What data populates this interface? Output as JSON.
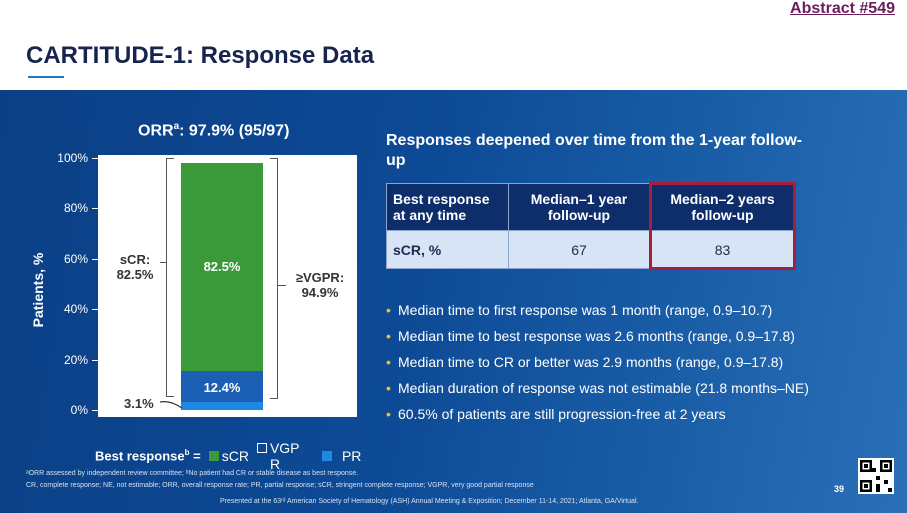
{
  "header": {
    "abstract_link": "Abstract #549",
    "title": "CARTITUDE-1: Response Data"
  },
  "chart_data": {
    "type": "bar",
    "title_prefix": "ORR",
    "title_sup": "a",
    "title_rest": ": 97.9% (95/97)",
    "ylabel": "Patients, %",
    "yticks": [
      "0%",
      "20%",
      "40%",
      "60%",
      "80%",
      "100%"
    ],
    "ylim": [
      0,
      100
    ],
    "stacked": true,
    "series": [
      {
        "name": "PR",
        "value": 3.1,
        "color": "#1e88e5"
      },
      {
        "name": "VGPR",
        "value": 12.4,
        "color": "#1a5fb4"
      },
      {
        "name": "sCR",
        "value": 82.5,
        "color": "#3a9a3a"
      }
    ],
    "labels": {
      "scr_inside": "82.5%",
      "vgpr_inside": "12.4%",
      "pr_outside": "3.1%",
      "scr_brace_line1": "sCR:",
      "scr_brace_line2": "82.5%",
      "vgpr_brace_line1": "≥VGPR:",
      "vgpr_brace_line2": "94.9%"
    },
    "legend": {
      "title": "Best response",
      "title_sup": "b",
      "eq": " =",
      "items": [
        {
          "label": "sCR",
          "color": "#3a9a3a"
        },
        {
          "label": "VGPR",
          "color": "#ffffff"
        },
        {
          "label": "PR",
          "color": "#1e88e5"
        }
      ]
    }
  },
  "responses": {
    "heading": "Responses deepened over time from the 1-year follow-up",
    "table": {
      "headers": [
        "Best response at any time",
        "Median–1 year follow-up",
        "Median–2 years follow-up"
      ],
      "rows": [
        [
          "sCR, %",
          "67",
          "83"
        ]
      ]
    }
  },
  "bullets": [
    "Median time to first response was 1 month (range, 0.9–10.7)",
    "Median time to best response was 2.6 months (range, 0.9–17.8)",
    "Median time to CR or better was 2.9 months (range, 0.9–17.8)",
    "Median duration of response was not estimable (21.8 months–NE)",
    "60.5% of patients are still progression-free at 2 years"
  ],
  "footer": {
    "footnote1": "ᵃORR assessed by independent review committee; ᵇNo patient had CR or stable disease as best response.",
    "footnote2": "CR, complete response; NE, not estimable; ORR, overall response rate; PR, partial response; sCR, stringent complete response; VGPR, very good partial response",
    "presented": "Presented at the 63ʳᵈ American Society of Hematology (ASH) Annual Meeting & Exposition; December 11-14, 2021; Atlanta, GA/Virtual.",
    "page_number": "39"
  }
}
